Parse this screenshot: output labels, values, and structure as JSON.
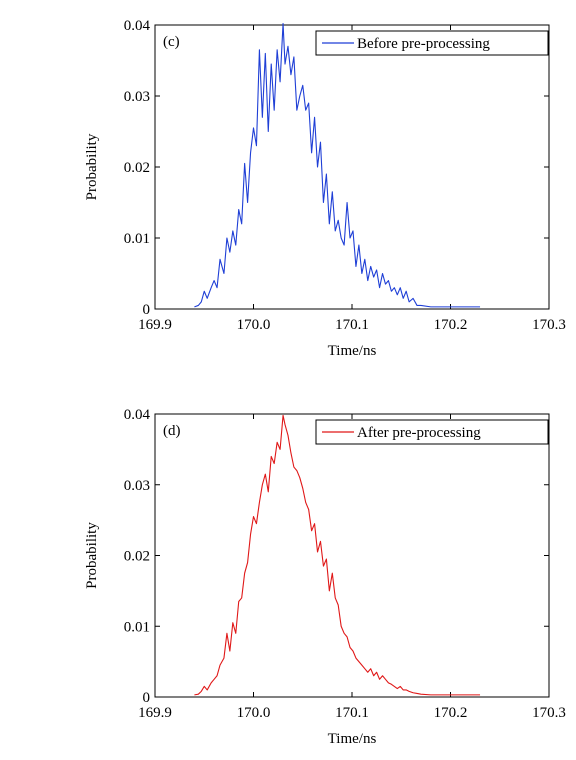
{
  "chart_data": [
    {
      "type": "line",
      "panel_label": "(c)",
      "xlabel": "Time/ns",
      "ylabel": "Probability",
      "xlim": [
        169.9,
        170.3
      ],
      "ylim": [
        0,
        0.04
      ],
      "xticks": [
        169.9,
        170.0,
        170.1,
        170.2,
        170.3
      ],
      "xtick_labels": [
        "169.9",
        "170.0",
        "170.1",
        "170.2",
        "170.3"
      ],
      "yticks": [
        0,
        0.01,
        0.02,
        0.03,
        0.04
      ],
      "ytick_labels": [
        "0",
        "0.01",
        "0.02",
        "0.03",
        "0.04"
      ],
      "legend_position": "top-right",
      "grid": false,
      "series": [
        {
          "name": "Before pre-processing",
          "color": "#1f3fd6",
          "x": [
            169.94,
            169.944,
            169.947,
            169.95,
            169.953,
            169.957,
            169.96,
            169.963,
            169.966,
            169.97,
            169.973,
            169.976,
            169.979,
            169.982,
            169.985,
            169.988,
            169.991,
            169.994,
            169.997,
            170.0,
            170.003,
            170.006,
            170.009,
            170.012,
            170.015,
            170.018,
            170.021,
            170.024,
            170.027,
            170.03,
            170.032,
            170.035,
            170.038,
            170.041,
            170.044,
            170.047,
            170.05,
            170.053,
            170.056,
            170.059,
            170.062,
            170.065,
            170.068,
            170.071,
            170.074,
            170.077,
            170.08,
            170.083,
            170.086,
            170.089,
            170.092,
            170.095,
            170.098,
            170.101,
            170.104,
            170.107,
            170.11,
            170.113,
            170.116,
            170.119,
            170.122,
            170.125,
            170.128,
            170.131,
            170.134,
            170.137,
            170.14,
            170.143,
            170.146,
            170.149,
            170.152,
            170.155,
            170.158,
            170.162,
            170.166,
            170.17,
            170.18,
            170.2,
            170.23
          ],
          "y": [
            0.0003,
            0.0005,
            0.001,
            0.0025,
            0.0015,
            0.003,
            0.004,
            0.003,
            0.007,
            0.005,
            0.01,
            0.008,
            0.011,
            0.009,
            0.014,
            0.012,
            0.0205,
            0.015,
            0.022,
            0.0255,
            0.023,
            0.0365,
            0.027,
            0.036,
            0.025,
            0.0345,
            0.028,
            0.0365,
            0.032,
            0.0402,
            0.0345,
            0.037,
            0.033,
            0.0355,
            0.028,
            0.03,
            0.0315,
            0.028,
            0.029,
            0.022,
            0.027,
            0.02,
            0.0235,
            0.015,
            0.019,
            0.012,
            0.0165,
            0.011,
            0.0125,
            0.01,
            0.009,
            0.015,
            0.01,
            0.011,
            0.006,
            0.009,
            0.005,
            0.007,
            0.004,
            0.006,
            0.0045,
            0.0055,
            0.003,
            0.005,
            0.0035,
            0.004,
            0.0025,
            0.003,
            0.002,
            0.003,
            0.0015,
            0.0025,
            0.001,
            0.0015,
            0.0005,
            0.0005,
            0.0003,
            0.0003,
            0.0003
          ]
        }
      ]
    },
    {
      "type": "line",
      "panel_label": "(d)",
      "xlabel": "Time/ns",
      "ylabel": "Probability",
      "xlim": [
        169.9,
        170.3
      ],
      "ylim": [
        0,
        0.04
      ],
      "xticks": [
        169.9,
        170.0,
        170.1,
        170.2,
        170.3
      ],
      "xtick_labels": [
        "169.9",
        "170.0",
        "170.1",
        "170.2",
        "170.3"
      ],
      "yticks": [
        0,
        0.01,
        0.02,
        0.03,
        0.04
      ],
      "ytick_labels": [
        "0",
        "0.01",
        "0.02",
        "0.03",
        "0.04"
      ],
      "legend_position": "top-right",
      "grid": false,
      "series": [
        {
          "name": "After pre-processing",
          "color": "#e01818",
          "x": [
            169.94,
            169.944,
            169.947,
            169.95,
            169.953,
            169.957,
            169.96,
            169.963,
            169.966,
            169.97,
            169.973,
            169.976,
            169.979,
            169.982,
            169.985,
            169.988,
            169.991,
            169.994,
            169.997,
            170.0,
            170.003,
            170.006,
            170.009,
            170.012,
            170.015,
            170.018,
            170.021,
            170.024,
            170.027,
            170.03,
            170.032,
            170.035,
            170.038,
            170.041,
            170.044,
            170.047,
            170.05,
            170.053,
            170.056,
            170.059,
            170.062,
            170.065,
            170.068,
            170.071,
            170.074,
            170.077,
            170.08,
            170.083,
            170.086,
            170.089,
            170.092,
            170.095,
            170.098,
            170.101,
            170.104,
            170.107,
            170.11,
            170.113,
            170.116,
            170.119,
            170.122,
            170.125,
            170.128,
            170.131,
            170.134,
            170.137,
            170.14,
            170.143,
            170.146,
            170.149,
            170.152,
            170.155,
            170.158,
            170.162,
            170.166,
            170.17,
            170.18,
            170.2,
            170.23
          ],
          "y": [
            0.0003,
            0.0004,
            0.0008,
            0.0015,
            0.001,
            0.002,
            0.0025,
            0.003,
            0.0045,
            0.0055,
            0.009,
            0.0065,
            0.0105,
            0.009,
            0.0135,
            0.014,
            0.0175,
            0.019,
            0.023,
            0.0255,
            0.0245,
            0.0275,
            0.03,
            0.0315,
            0.029,
            0.034,
            0.033,
            0.036,
            0.035,
            0.0398,
            0.0385,
            0.037,
            0.0345,
            0.0325,
            0.032,
            0.031,
            0.0295,
            0.0275,
            0.0265,
            0.0235,
            0.0245,
            0.0205,
            0.022,
            0.0185,
            0.0195,
            0.015,
            0.0175,
            0.014,
            0.013,
            0.01,
            0.009,
            0.0085,
            0.007,
            0.0065,
            0.0055,
            0.005,
            0.0045,
            0.004,
            0.0035,
            0.004,
            0.003,
            0.0035,
            0.0025,
            0.003,
            0.0025,
            0.002,
            0.0018,
            0.0015,
            0.0012,
            0.0015,
            0.001,
            0.001,
            0.0008,
            0.0006,
            0.0005,
            0.0004,
            0.0003,
            0.0003,
            0.0003
          ]
        }
      ]
    }
  ]
}
